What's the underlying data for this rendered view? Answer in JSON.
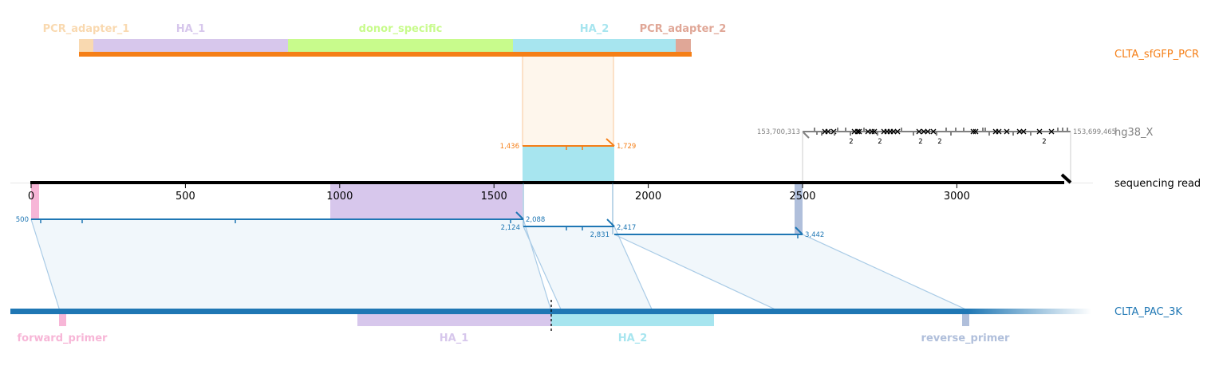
{
  "colors": {
    "pcr_adapter_1": "#f9d9b0",
    "ha_1": "#d7c7ec",
    "donor_specific": "#c8fb8c",
    "ha_2": "#a7e5ef",
    "pcr_adapter_2": "#e0a797",
    "orange": "#f57f17",
    "blue": "#1f77b4",
    "grey": "#808080",
    "forward_primer": "#f7b6d7",
    "reverse_primer": "#b0bfdb"
  },
  "tracks": {
    "pcr": {
      "name": "CLTA_sfGFP_PCR"
    },
    "genome": {
      "name": "hg38_X",
      "left_coord": "153,700,313",
      "right_coord": "153,699,465"
    },
    "read": {
      "name": "sequencing read"
    },
    "plasmid": {
      "name": "CLTA_PAC_3K"
    }
  },
  "pcr_features": [
    {
      "label": "PCR_adapter_1",
      "color_key": "pcr_adapter_1"
    },
    {
      "label": "HA_1",
      "color_key": "ha_1"
    },
    {
      "label": "donor_specific",
      "color_key": "donor_specific"
    },
    {
      "label": "HA_2",
      "color_key": "ha_2"
    },
    {
      "label": "PCR_adapter_2",
      "color_key": "pcr_adapter_2"
    }
  ],
  "plasmid_features": [
    {
      "label": "forward_primer",
      "color_key": "forward_primer"
    },
    {
      "label": "HA_1",
      "color_key": "ha_1"
    },
    {
      "label": "HA_2",
      "color_key": "ha_2"
    },
    {
      "label": "reverse_primer",
      "color_key": "reverse_primer"
    }
  ],
  "read_axis": {
    "ticks": [
      0,
      500,
      1000,
      1500,
      2000,
      2500,
      3000
    ],
    "length": 3370
  },
  "alignments": {
    "pcr": {
      "start_label": "1,436",
      "end_label": "1,729",
      "read_start": 1592,
      "read_end": 1890
    },
    "plasmid_1": {
      "start_label": "500",
      "end_label": "2,088",
      "read_start": 0,
      "read_end": 1592
    },
    "plasmid_2": {
      "start_label": "2,124",
      "end_label": "2,417",
      "read_start": 1592,
      "read_end": 1890
    },
    "plasmid_3": {
      "start_label": "2,831",
      "end_label": "3,442",
      "read_start": 1890,
      "read_end": 2500
    }
  },
  "genome_counts": [
    "2",
    "2",
    "2",
    "2",
    "2"
  ]
}
